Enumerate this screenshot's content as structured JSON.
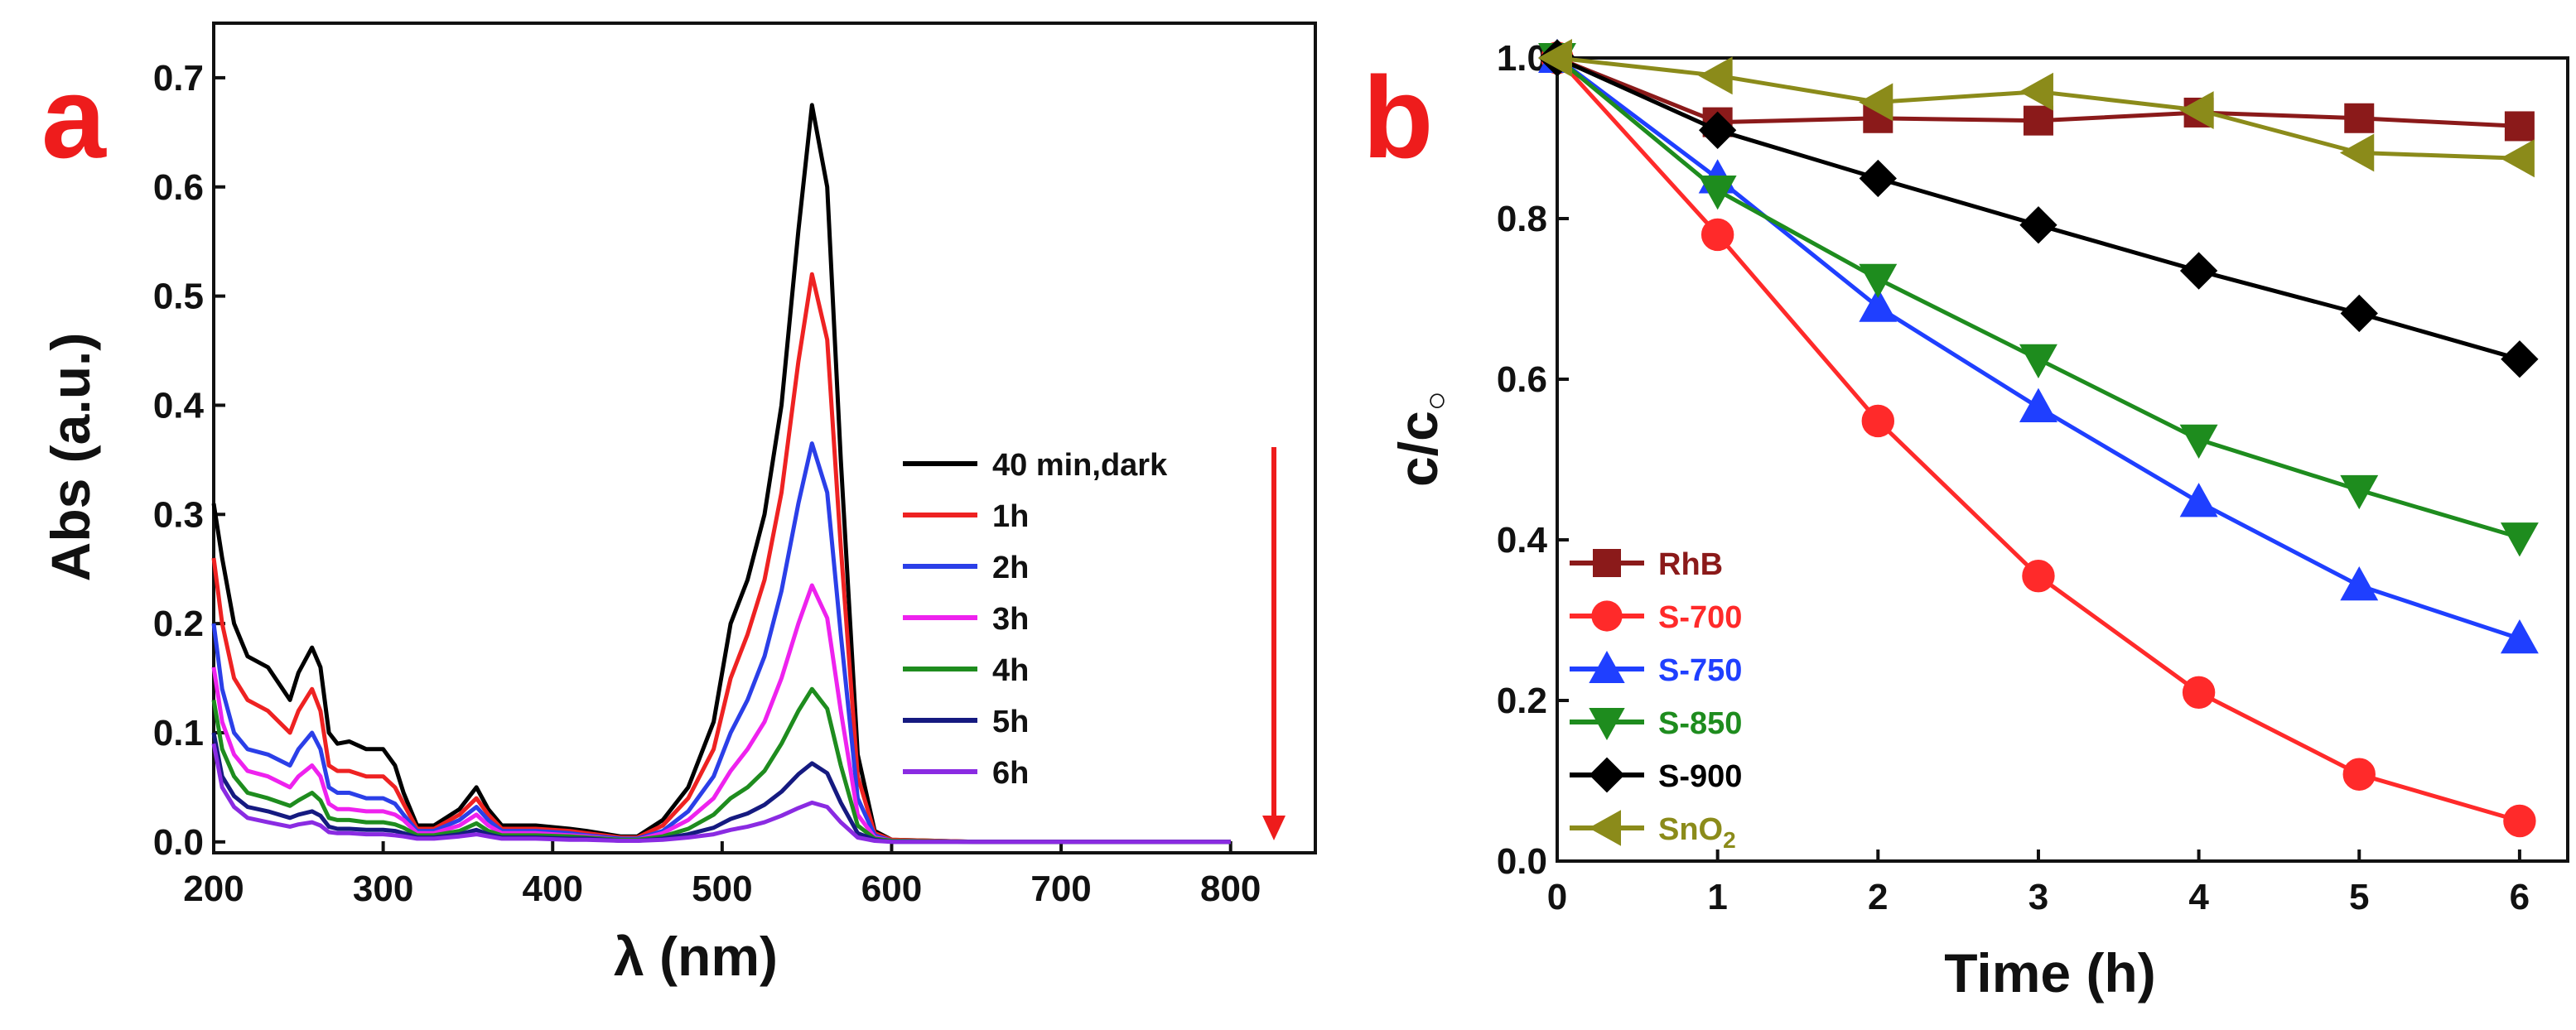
{
  "chart_data": [
    {
      "panel_label": "a",
      "type": "line",
      "xlabel": "λ (nm)",
      "ylabel": "Abs (a.u.)",
      "xlim": [
        200,
        850
      ],
      "ylim": [
        -0.01,
        0.75
      ],
      "xticks": [
        "200",
        "300",
        "400",
        "500",
        "600",
        "700",
        "800"
      ],
      "yticks": [
        "0.0",
        "0.1",
        "0.2",
        "0.3",
        "0.4",
        "0.5",
        "0.6",
        "0.7"
      ],
      "legend_placement": "right",
      "annotation": "downward red arrow beside legend",
      "series": [
        {
          "name": "40 min,dark",
          "color": "#000000",
          "x": [
            200,
            205,
            212,
            220,
            232,
            245,
            250,
            258,
            263,
            268,
            273,
            280,
            290,
            300,
            307,
            312,
            320,
            330,
            345,
            355,
            362,
            370,
            390,
            410,
            420,
            440,
            450,
            465,
            480,
            495,
            505,
            515,
            525,
            535,
            545,
            553,
            562,
            570,
            580,
            590,
            600,
            650,
            700,
            750,
            800
          ],
          "y": [
            0.31,
            0.26,
            0.2,
            0.17,
            0.16,
            0.13,
            0.155,
            0.178,
            0.16,
            0.1,
            0.09,
            0.092,
            0.085,
            0.085,
            0.07,
            0.045,
            0.015,
            0.015,
            0.03,
            0.05,
            0.03,
            0.015,
            0.015,
            0.012,
            0.01,
            0.005,
            0.005,
            0.02,
            0.05,
            0.11,
            0.2,
            0.24,
            0.3,
            0.4,
            0.56,
            0.675,
            0.6,
            0.35,
            0.08,
            0.01,
            0.002,
            0,
            0,
            0,
            0
          ]
        },
        {
          "name": "1h",
          "color": "#ee2222",
          "x": [
            200,
            205,
            212,
            220,
            232,
            245,
            250,
            258,
            263,
            268,
            273,
            280,
            290,
            300,
            307,
            312,
            320,
            330,
            345,
            355,
            362,
            370,
            390,
            410,
            420,
            440,
            450,
            465,
            480,
            495,
            505,
            515,
            525,
            535,
            545,
            553,
            562,
            570,
            580,
            590,
            600,
            650,
            700,
            750,
            800
          ],
          "y": [
            0.26,
            0.2,
            0.15,
            0.13,
            0.12,
            0.1,
            0.12,
            0.14,
            0.12,
            0.07,
            0.065,
            0.065,
            0.06,
            0.06,
            0.05,
            0.035,
            0.012,
            0.012,
            0.025,
            0.04,
            0.025,
            0.012,
            0.012,
            0.01,
            0.008,
            0.004,
            0.004,
            0.015,
            0.04,
            0.085,
            0.15,
            0.19,
            0.24,
            0.32,
            0.44,
            0.52,
            0.46,
            0.27,
            0.06,
            0.008,
            0.002,
            0,
            0,
            0,
            0
          ]
        },
        {
          "name": "2h",
          "color": "#2b3fe8",
          "x": [
            200,
            205,
            212,
            220,
            232,
            245,
            250,
            258,
            263,
            268,
            273,
            280,
            290,
            300,
            307,
            312,
            320,
            330,
            345,
            355,
            362,
            370,
            390,
            410,
            420,
            440,
            450,
            465,
            480,
            495,
            505,
            515,
            525,
            535,
            545,
            553,
            562,
            570,
            580,
            590,
            600,
            650,
            700,
            750,
            800
          ],
          "y": [
            0.2,
            0.14,
            0.1,
            0.085,
            0.08,
            0.07,
            0.085,
            0.1,
            0.085,
            0.05,
            0.045,
            0.045,
            0.04,
            0.04,
            0.035,
            0.025,
            0.01,
            0.01,
            0.02,
            0.032,
            0.02,
            0.01,
            0.01,
            0.008,
            0.006,
            0.003,
            0.003,
            0.01,
            0.028,
            0.06,
            0.1,
            0.13,
            0.17,
            0.23,
            0.31,
            0.365,
            0.32,
            0.19,
            0.04,
            0.006,
            0.001,
            0,
            0,
            0,
            0
          ]
        },
        {
          "name": "3h",
          "color": "#ee22ee",
          "x": [
            200,
            205,
            212,
            220,
            232,
            245,
            250,
            258,
            263,
            268,
            273,
            280,
            290,
            300,
            307,
            312,
            320,
            330,
            345,
            355,
            362,
            370,
            390,
            410,
            420,
            440,
            450,
            465,
            480,
            495,
            505,
            515,
            525,
            535,
            545,
            553,
            562,
            570,
            580,
            590,
            600,
            650,
            700,
            750,
            800
          ],
          "y": [
            0.16,
            0.11,
            0.08,
            0.065,
            0.06,
            0.05,
            0.06,
            0.07,
            0.06,
            0.035,
            0.03,
            0.03,
            0.028,
            0.028,
            0.025,
            0.02,
            0.008,
            0.008,
            0.015,
            0.025,
            0.015,
            0.008,
            0.008,
            0.006,
            0.005,
            0.002,
            0.002,
            0.008,
            0.02,
            0.04,
            0.065,
            0.085,
            0.11,
            0.15,
            0.2,
            0.235,
            0.205,
            0.12,
            0.025,
            0.004,
            0.001,
            0,
            0,
            0,
            0
          ]
        },
        {
          "name": "4h",
          "color": "#1e8c1e",
          "x": [
            200,
            205,
            212,
            220,
            232,
            245,
            250,
            258,
            263,
            268,
            273,
            280,
            290,
            300,
            307,
            312,
            320,
            330,
            345,
            355,
            362,
            370,
            390,
            410,
            420,
            440,
            450,
            465,
            480,
            495,
            505,
            515,
            525,
            535,
            545,
            553,
            562,
            570,
            580,
            590,
            600,
            650,
            700,
            750,
            800
          ],
          "y": [
            0.13,
            0.085,
            0.06,
            0.045,
            0.04,
            0.033,
            0.038,
            0.045,
            0.038,
            0.022,
            0.02,
            0.02,
            0.018,
            0.018,
            0.016,
            0.013,
            0.006,
            0.006,
            0.01,
            0.017,
            0.01,
            0.006,
            0.006,
            0.005,
            0.004,
            0.002,
            0.002,
            0.005,
            0.012,
            0.025,
            0.04,
            0.05,
            0.065,
            0.09,
            0.12,
            0.14,
            0.122,
            0.07,
            0.015,
            0.003,
            0.001,
            0,
            0,
            0,
            0
          ]
        },
        {
          "name": "5h",
          "color": "#151a80",
          "x": [
            200,
            205,
            212,
            220,
            232,
            245,
            250,
            258,
            263,
            268,
            273,
            280,
            290,
            300,
            307,
            312,
            320,
            330,
            345,
            355,
            362,
            370,
            390,
            410,
            420,
            440,
            450,
            465,
            480,
            495,
            505,
            515,
            525,
            535,
            545,
            553,
            562,
            570,
            580,
            590,
            600,
            650,
            700,
            750,
            800
          ],
          "y": [
            0.1,
            0.06,
            0.042,
            0.032,
            0.028,
            0.022,
            0.025,
            0.028,
            0.024,
            0.014,
            0.012,
            0.012,
            0.011,
            0.011,
            0.01,
            0.008,
            0.004,
            0.004,
            0.007,
            0.011,
            0.007,
            0.004,
            0.004,
            0.003,
            0.003,
            0.001,
            0.001,
            0.003,
            0.007,
            0.013,
            0.021,
            0.026,
            0.034,
            0.046,
            0.062,
            0.072,
            0.063,
            0.036,
            0.008,
            0.002,
            0,
            0,
            0,
            0,
            0
          ]
        },
        {
          "name": "6h",
          "color": "#8a2be2",
          "x": [
            200,
            205,
            212,
            220,
            232,
            245,
            250,
            258,
            263,
            268,
            273,
            280,
            290,
            300,
            307,
            312,
            320,
            330,
            345,
            355,
            362,
            370,
            390,
            410,
            420,
            440,
            450,
            465,
            480,
            495,
            505,
            515,
            525,
            535,
            545,
            553,
            562,
            570,
            580,
            590,
            600,
            650,
            700,
            750,
            800
          ],
          "y": [
            0.09,
            0.05,
            0.032,
            0.022,
            0.018,
            0.014,
            0.016,
            0.018,
            0.015,
            0.009,
            0.008,
            0.008,
            0.007,
            0.007,
            0.006,
            0.005,
            0.003,
            0.003,
            0.005,
            0.007,
            0.005,
            0.003,
            0.003,
            0.002,
            0.002,
            0.001,
            0.001,
            0.002,
            0.004,
            0.007,
            0.011,
            0.014,
            0.018,
            0.024,
            0.031,
            0.036,
            0.032,
            0.018,
            0.004,
            0.001,
            0,
            0,
            0,
            0,
            0
          ]
        }
      ]
    },
    {
      "panel_label": "b",
      "type": "line",
      "xlabel": "Time (h)",
      "ylabel": "c/c",
      "ylabel_subscript": "○",
      "xlim": [
        0,
        6.3
      ],
      "ylim": [
        0,
        1
      ],
      "xticks": [
        "0",
        "1",
        "2",
        "3",
        "4",
        "5",
        "6"
      ],
      "yticks": [
        "0.0",
        "0.2",
        "0.4",
        "0.6",
        "0.8",
        "1.0"
      ],
      "legend_placement": "bottom-left",
      "x": [
        0,
        1,
        2,
        3,
        4,
        5,
        6
      ],
      "series": [
        {
          "name": "RhB",
          "name_subscript": "",
          "color": "#8b1a1a",
          "marker": "square",
          "values": [
            1.0,
            0.92,
            0.925,
            0.922,
            0.932,
            0.925,
            0.915
          ]
        },
        {
          "name": "S-700",
          "name_subscript": "",
          "color": "#ff2a2a",
          "marker": "circle",
          "values": [
            1.0,
            0.78,
            0.548,
            0.355,
            0.21,
            0.108,
            0.05
          ]
        },
        {
          "name": "S-750",
          "name_subscript": "",
          "color": "#1f3fff",
          "marker": "triangle-up",
          "values": [
            1.0,
            0.85,
            0.69,
            0.565,
            0.447,
            0.343,
            0.277
          ]
        },
        {
          "name": "S-850",
          "name_subscript": "",
          "color": "#1e8c1e",
          "marker": "triangle-down",
          "values": [
            1.0,
            0.835,
            0.725,
            0.625,
            0.525,
            0.462,
            0.403
          ]
        },
        {
          "name": "S-900",
          "name_subscript": "",
          "color": "#000000",
          "marker": "diamond",
          "values": [
            1.0,
            0.91,
            0.85,
            0.792,
            0.735,
            0.682,
            0.625
          ]
        },
        {
          "name": "SnO",
          "name_subscript": "2",
          "color": "#8b8b1a",
          "marker": "triangle-left",
          "values": [
            1.0,
            0.978,
            0.945,
            0.958,
            0.935,
            0.882,
            0.875
          ]
        }
      ]
    }
  ]
}
